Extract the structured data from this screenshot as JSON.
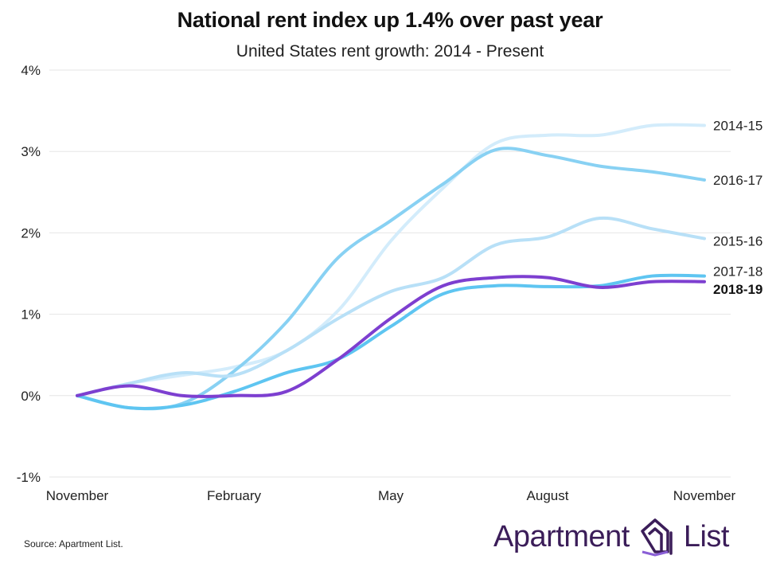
{
  "title": "National rent index up 1.4% over past year",
  "subtitle": "United States rent growth: 2014 - Present",
  "source": "Source: Apartment List.",
  "logo": {
    "left_word": "Apartment",
    "right_word": "List"
  },
  "colors": {
    "2014-15": "#d3ecfb",
    "2015-16": "#b8e0f7",
    "2016-17": "#88d1f3",
    "2017-18": "#5ec5f1",
    "2018-19": "#7d3fd0",
    "grid": "#e6e6e6",
    "brand": "#3b1d59"
  },
  "chart_data": {
    "type": "line",
    "title": "National rent index up 1.4% over past year",
    "subtitle": "United States rent growth: 2014 - Present",
    "xlabel": "",
    "ylabel": "",
    "x_ticks": [
      "November",
      "February",
      "May",
      "August",
      "November"
    ],
    "y_ticks": [
      "4%",
      "3%",
      "2%",
      "1%",
      "0%",
      "-1%"
    ],
    "y_tick_values": [
      4,
      3,
      2,
      1,
      0,
      -1
    ],
    "ylim": [
      -1,
      4
    ],
    "x_months": 12,
    "grid": true,
    "legend": "inline labels at right end of lines",
    "series": [
      {
        "name": "2014-15",
        "bold": false,
        "x": [
          0,
          1,
          2,
          3,
          4,
          5,
          6,
          7,
          8,
          9,
          10,
          11,
          12
        ],
        "values": [
          0,
          0.15,
          0.25,
          0.35,
          0.55,
          1.05,
          1.9,
          2.55,
          3.1,
          3.2,
          3.2,
          3.32,
          3.32
        ]
      },
      {
        "name": "2016-17",
        "bold": false,
        "x": [
          0,
          1,
          2,
          3,
          4,
          5,
          6,
          7,
          8,
          9,
          10,
          11,
          12
        ],
        "values": [
          0,
          -0.15,
          -0.1,
          0.3,
          0.9,
          1.7,
          2.15,
          2.6,
          3.02,
          2.95,
          2.82,
          2.75,
          2.65
        ]
      },
      {
        "name": "2015-16",
        "bold": false,
        "x": [
          0,
          1,
          2,
          3,
          4,
          5,
          6,
          7,
          8,
          9,
          10,
          11,
          12
        ],
        "values": [
          0,
          0.15,
          0.28,
          0.25,
          0.55,
          0.95,
          1.28,
          1.45,
          1.85,
          1.95,
          2.18,
          2.05,
          1.93
        ]
      },
      {
        "name": "2017-18",
        "bold": false,
        "x": [
          0,
          1,
          2,
          3,
          4,
          5,
          6,
          7,
          8,
          9,
          10,
          11,
          12
        ],
        "values": [
          0,
          -0.15,
          -0.12,
          0.05,
          0.28,
          0.45,
          0.85,
          1.25,
          1.35,
          1.34,
          1.35,
          1.47,
          1.47
        ]
      },
      {
        "name": "2018-19",
        "bold": true,
        "x": [
          0,
          1,
          2,
          3,
          4,
          5,
          6,
          7,
          8,
          9,
          10,
          11,
          12
        ],
        "values": [
          0,
          0.12,
          0.0,
          0.0,
          0.05,
          0.45,
          0.95,
          1.35,
          1.45,
          1.45,
          1.33,
          1.4,
          1.4
        ]
      }
    ]
  }
}
